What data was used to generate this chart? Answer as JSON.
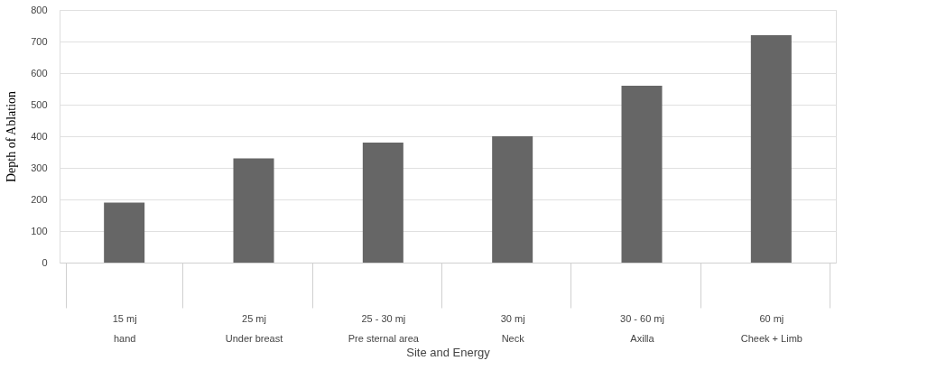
{
  "chart_data": {
    "type": "bar",
    "xlabel": "Site and Energy",
    "ylabel": "Depth  of Ablation",
    "categories": [
      "15 mj\nhand",
      "25 mj\nUnder breast",
      "25 - 30 mj\nPre sternal area",
      "30 mj\nNeck",
      "30 - 60 mj\nAxilla",
      "60 mj\nCheek + Limb"
    ],
    "values": [
      190,
      330,
      380,
      400,
      560,
      720
    ],
    "color": "#666666",
    "ylim": [
      0,
      800
    ],
    "yticks": [
      0,
      100,
      200,
      300,
      400,
      500,
      600,
      700,
      800
    ],
    "grid": "y"
  }
}
